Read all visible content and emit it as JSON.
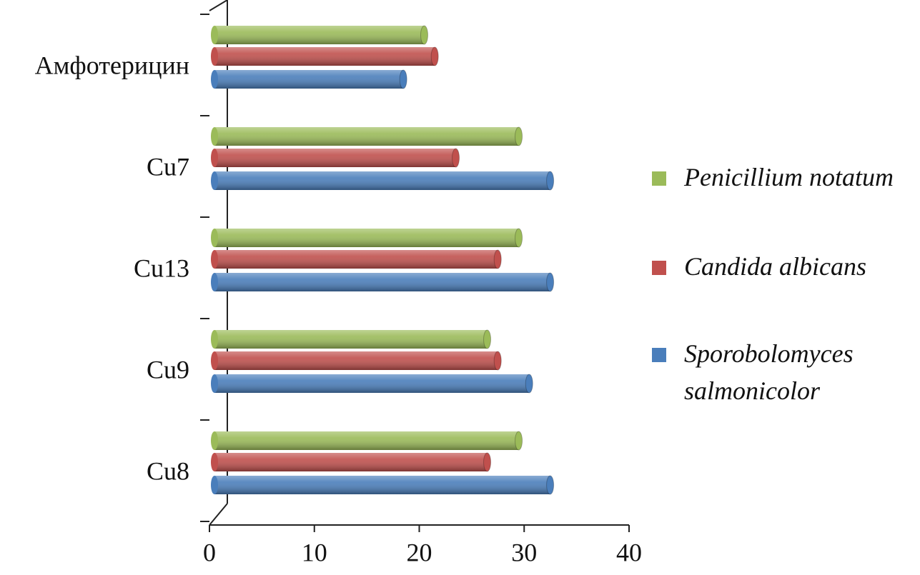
{
  "chart_data": {
    "type": "bar",
    "orientation": "horizontal",
    "categories": [
      "Cu8",
      "Cu9",
      "Cu13",
      "Cu7",
      "Амфотерицин"
    ],
    "series": [
      {
        "name": "Sporobolomyces salmonicolor",
        "color": "#4a7ebb",
        "values": [
          32,
          30,
          32,
          32,
          18
        ]
      },
      {
        "name": "Candida albicans",
        "color": "#c0504d",
        "values": [
          26,
          27,
          27,
          23,
          21
        ]
      },
      {
        "name": "Penicillium notatum",
        "color": "#9bbb59",
        "values": [
          29,
          26,
          29,
          29,
          20
        ]
      }
    ],
    "xlim": [
      0,
      40
    ],
    "xticks": [
      0,
      10,
      20,
      30,
      40
    ],
    "legend": "right"
  }
}
